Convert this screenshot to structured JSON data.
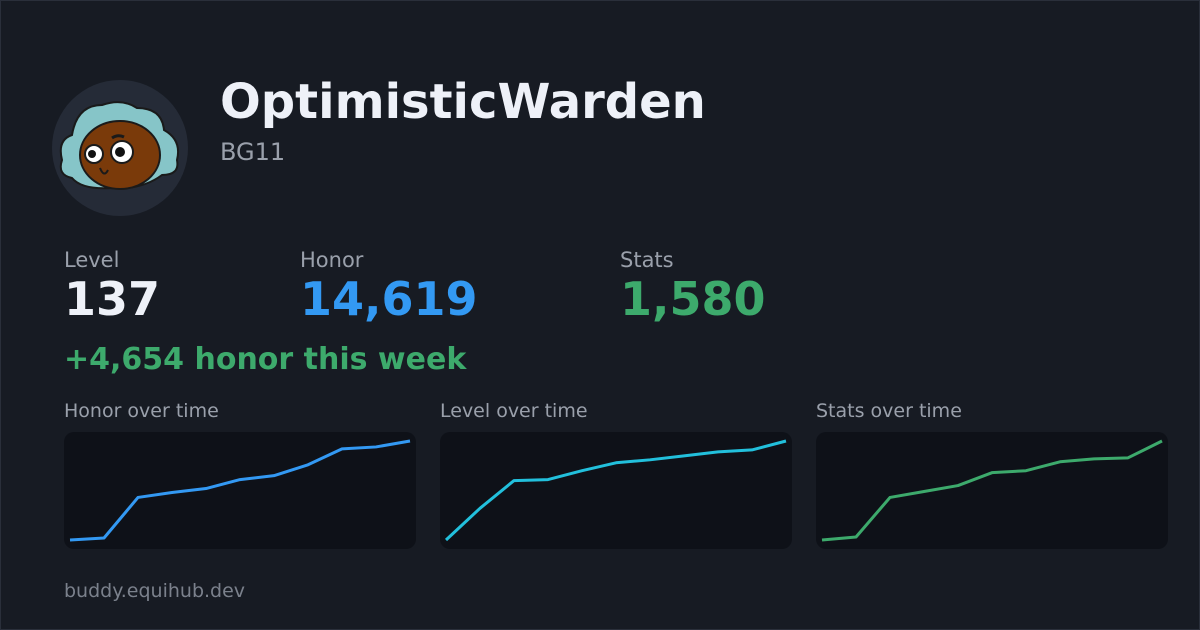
{
  "profile": {
    "name": "OptimisticWarden",
    "tag": "BG11"
  },
  "stats": [
    {
      "label": "Level",
      "value": "137",
      "color": "#eef1f8"
    },
    {
      "label": "Honor",
      "value": "14,619",
      "color": "#3399f3"
    },
    {
      "label": "Stats",
      "value": "1,580",
      "color": "#3daa6c"
    }
  ],
  "weekly": "+4,654 honor this week",
  "charts": [
    {
      "title": "Honor over time",
      "type": "line",
      "color": "#3399f3",
      "values": [
        0,
        2,
        43,
        48,
        52,
        61,
        65,
        76,
        92,
        94,
        100
      ]
    },
    {
      "title": "Level over time",
      "type": "line",
      "color": "#22c0dc",
      "values": [
        0,
        32,
        60,
        61,
        70,
        78,
        81,
        85,
        89,
        91,
        100
      ]
    },
    {
      "title": "Stats over time",
      "type": "line",
      "color": "#3daa6c",
      "values": [
        0,
        3,
        43,
        49,
        55,
        68,
        70,
        79,
        82,
        83,
        100
      ]
    }
  ],
  "footer": "buddy.equihub.dev"
}
